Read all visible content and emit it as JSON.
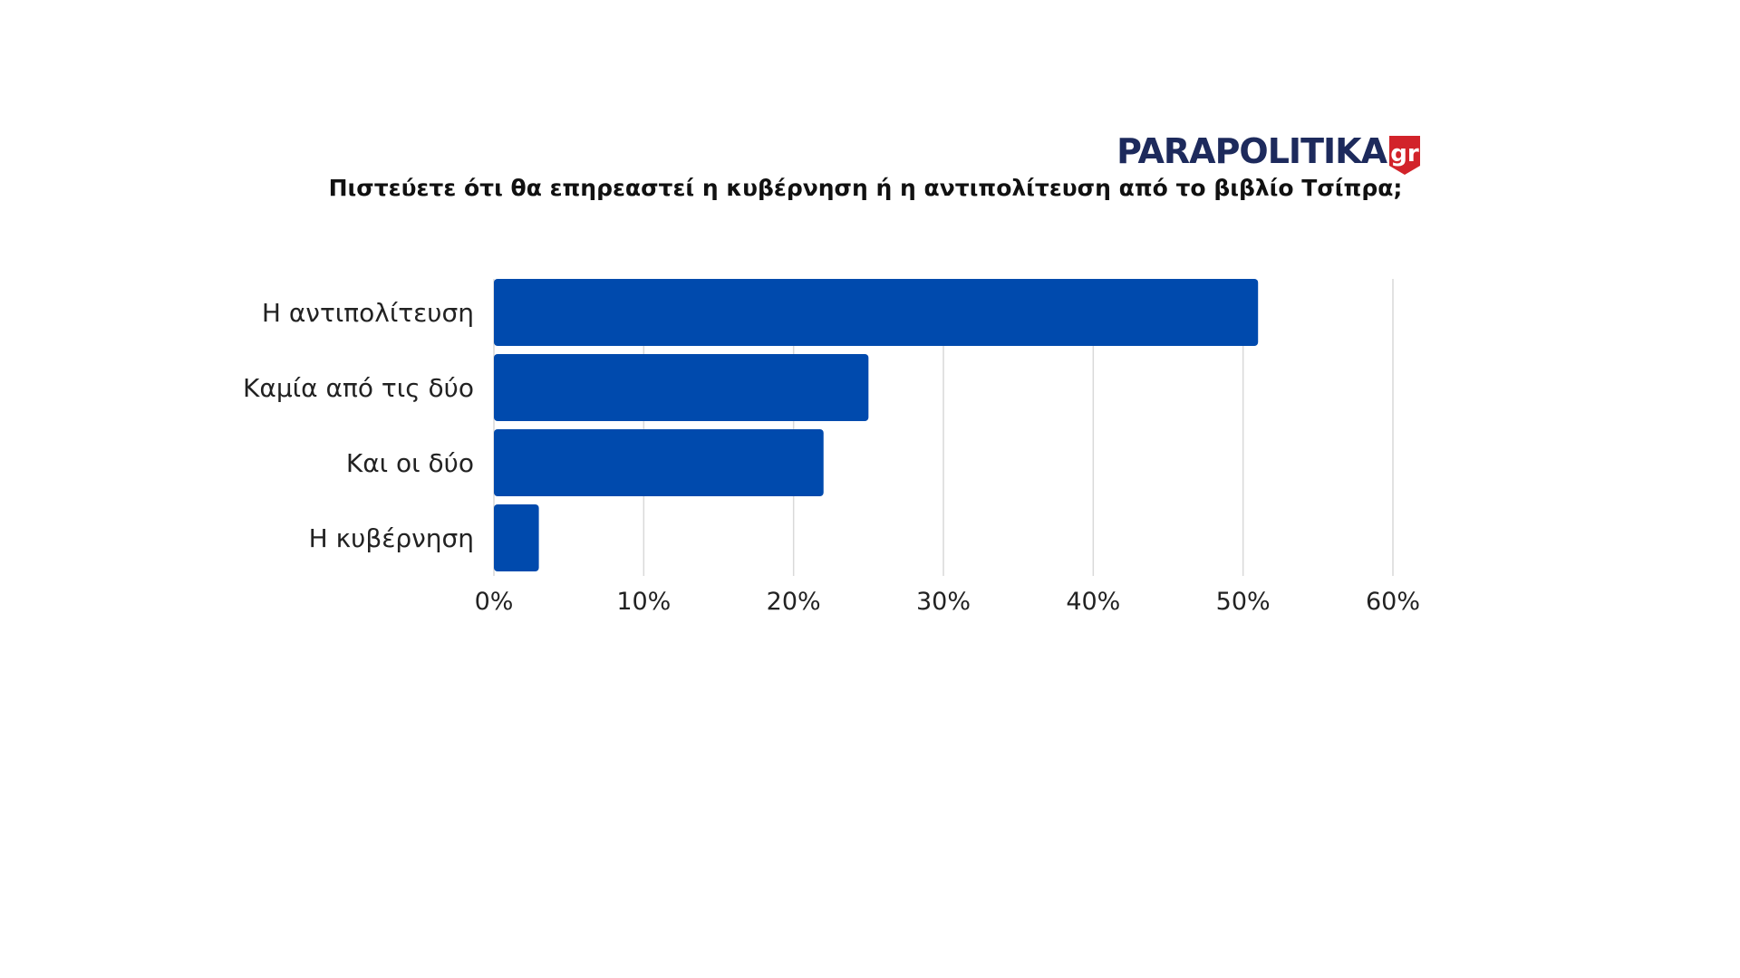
{
  "logo": {
    "name": "PARAPOLITIKA",
    "suffix": "gr",
    "color": "#1d2a5c",
    "badge_color": "#d2232a"
  },
  "chart_data": {
    "type": "bar",
    "orientation": "horizontal",
    "title": "Πιστεύετε ότι θα επηρεαστεί η κυβέρνηση ή η αντιπολίτευση από το βιβλίο Τσίπρα;",
    "categories": [
      "Η αντιπολίτευση",
      "Καμία από τις δύο",
      "Και οι δύο",
      "Η κυβέρνηση"
    ],
    "values": [
      51,
      25,
      22,
      3
    ],
    "unit": "%",
    "xlim": [
      0,
      60
    ],
    "xticks": [
      0,
      10,
      20,
      30,
      40,
      50,
      60
    ],
    "xtick_labels": [
      "0%",
      "10%",
      "20%",
      "30%",
      "40%",
      "50%",
      "60%"
    ],
    "xlabel": "",
    "ylabel": "",
    "grid": true,
    "bar_color": "#004aad",
    "grid_color": "#d9d9d9"
  }
}
